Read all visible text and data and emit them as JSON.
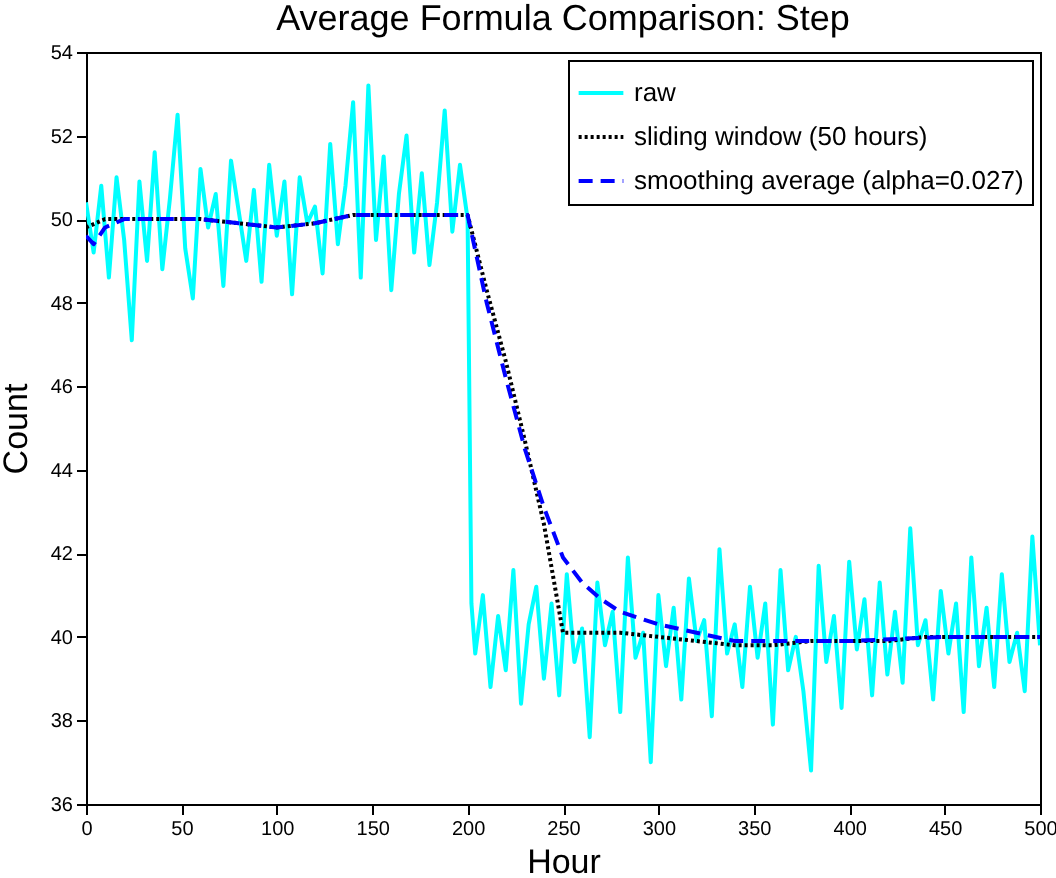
{
  "chart_data": {
    "type": "line",
    "title": "Average Formula Comparison: Step",
    "xlabel": "Hour",
    "ylabel": "Count",
    "xlim": [
      0,
      500
    ],
    "xticks": [
      0,
      50,
      100,
      150,
      200,
      250,
      300,
      350,
      400,
      450,
      500
    ],
    "ylim": [
      36,
      54
    ],
    "yticks": [
      36,
      38,
      40,
      42,
      44,
      46,
      48,
      50,
      52,
      54
    ],
    "grid": false,
    "legend": "top right",
    "marker": "none",
    "series": [
      {
        "name": "raw",
        "color": "#00ffff",
        "line_style": "solid",
        "x": [
          0,
          4,
          8,
          12,
          16,
          20,
          24,
          28,
          32,
          36,
          40,
          44,
          48,
          52,
          56,
          60,
          64,
          68,
          72,
          76,
          80,
          84,
          88,
          92,
          96,
          100,
          104,
          108,
          112,
          116,
          120,
          124,
          128,
          132,
          136,
          140,
          144,
          148,
          152,
          156,
          160,
          164,
          168,
          172,
          176,
          180,
          184,
          188,
          192,
          196,
          200,
          202,
          204,
          208,
          212,
          216,
          220,
          224,
          228,
          232,
          236,
          240,
          244,
          248,
          252,
          256,
          260,
          264,
          268,
          272,
          276,
          280,
          284,
          288,
          292,
          296,
          300,
          304,
          308,
          312,
          316,
          320,
          324,
          328,
          332,
          336,
          340,
          344,
          348,
          352,
          356,
          360,
          364,
          368,
          372,
          376,
          380,
          384,
          388,
          392,
          396,
          400,
          404,
          408,
          412,
          416,
          420,
          424,
          428,
          432,
          436,
          440,
          444,
          448,
          452,
          456,
          460,
          464,
          468,
          472,
          476,
          480,
          484,
          488,
          492,
          496,
          500
        ],
        "values": [
          50.4,
          49.2,
          50.8,
          48.6,
          51.0,
          49.5,
          47.1,
          50.9,
          49.0,
          51.6,
          48.8,
          50.5,
          52.5,
          49.3,
          48.1,
          51.2,
          49.8,
          50.6,
          48.4,
          51.4,
          50.2,
          49.0,
          50.7,
          48.5,
          51.3,
          49.6,
          50.9,
          48.2,
          51.0,
          49.9,
          50.3,
          48.7,
          51.8,
          49.4,
          50.8,
          52.8,
          48.6,
          53.2,
          49.5,
          51.5,
          48.3,
          50.6,
          52.0,
          49.2,
          51.1,
          48.9,
          50.4,
          52.6,
          49.7,
          51.3,
          50.0,
          40.8,
          39.6,
          41.0,
          38.8,
          40.5,
          39.2,
          41.6,
          38.4,
          40.3,
          41.2,
          39.0,
          40.8,
          38.6,
          41.5,
          39.4,
          40.2,
          37.6,
          41.3,
          39.8,
          40.6,
          38.2,
          41.9,
          39.5,
          40.1,
          37.0,
          41.0,
          39.3,
          40.7,
          38.5,
          41.4,
          39.9,
          40.4,
          38.1,
          42.1,
          39.6,
          40.3,
          38.8,
          41.2,
          39.5,
          40.8,
          37.9,
          41.6,
          39.2,
          40.0,
          38.7,
          36.8,
          41.7,
          39.4,
          40.5,
          38.3,
          41.8,
          39.7,
          40.9,
          38.6,
          41.3,
          39.1,
          40.6,
          38.9,
          42.6,
          39.8,
          40.4,
          38.5,
          41.1,
          39.6,
          40.8,
          38.2,
          41.9,
          39.3,
          40.7,
          38.8,
          41.5,
          39.4,
          40.1,
          38.7,
          42.4,
          39.8
        ]
      },
      {
        "name": "sliding window (50 hours)",
        "color": "#000000",
        "line_style": "dotted",
        "x": [
          0,
          10,
          20,
          40,
          60,
          80,
          100,
          120,
          140,
          160,
          180,
          200,
          210,
          220,
          230,
          240,
          250,
          260,
          280,
          300,
          320,
          340,
          360,
          380,
          400,
          420,
          440,
          460,
          480,
          500
        ],
        "values": [
          49.8,
          50.0,
          50.0,
          50.0,
          50.0,
          49.9,
          49.8,
          49.9,
          50.1,
          50.1,
          50.1,
          50.1,
          48.3,
          46.6,
          44.7,
          42.7,
          40.1,
          40.1,
          40.1,
          40.0,
          39.9,
          39.8,
          39.8,
          39.9,
          39.9,
          39.9,
          40.0,
          40.0,
          40.0,
          40.0
        ]
      },
      {
        "name": "smoothing average (alpha=0.027)",
        "color": "#0000ff",
        "line_style": "dashed",
        "x": [
          0,
          4,
          10,
          20,
          40,
          60,
          80,
          100,
          120,
          140,
          160,
          180,
          200,
          210,
          220,
          230,
          240,
          250,
          260,
          270,
          280,
          300,
          320,
          340,
          360,
          400,
          450,
          500
        ],
        "values": [
          49.6,
          49.4,
          49.8,
          50.0,
          50.0,
          50.0,
          49.9,
          49.8,
          49.9,
          50.1,
          50.1,
          50.1,
          50.1,
          48.0,
          46.2,
          44.5,
          43.1,
          41.9,
          41.3,
          40.9,
          40.6,
          40.3,
          40.1,
          39.9,
          39.9,
          39.9,
          40.0,
          40.0
        ]
      }
    ]
  }
}
